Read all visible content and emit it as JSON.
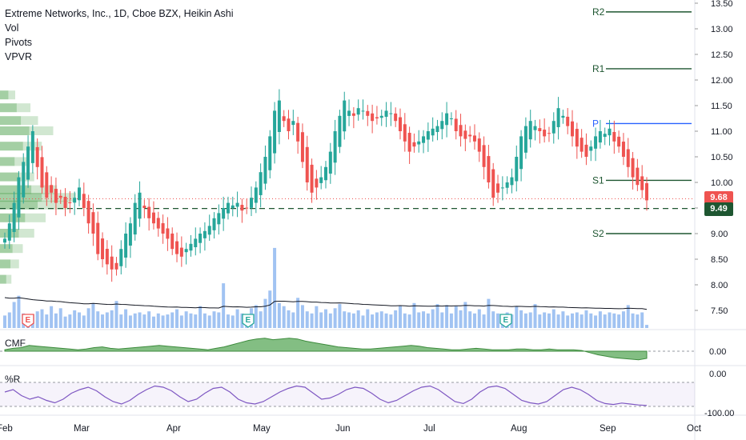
{
  "legend": {
    "title": "Extreme Networks, Inc., 1D, Cboe BZX, Heikin Ashi",
    "lines": [
      "Vol",
      "Pivots",
      "VPVR"
    ]
  },
  "panes": {
    "cmf_label": "CMF",
    "wr_label": "%R"
  },
  "colors": {
    "up": "#26a69a",
    "down": "#ef5350",
    "pivot": "#1e5631",
    "pivot_p": "#2962ff",
    "volume": "#90b8f0",
    "cmf": "#5aa85a",
    "wr": "#7e57c2"
  },
  "chart_data": [
    {
      "type": "candlestick",
      "title": "",
      "y_axis_ticks": [
        "13.50",
        "13.00",
        "12.50",
        "12.00",
        "11.50",
        "11.00",
        "10.50",
        "10.00",
        "9.50",
        "9.00",
        "8.50",
        "8.00",
        "7.50"
      ],
      "ylim": [
        7.25,
        13.55
      ],
      "x_axis_labels": [
        "Feb",
        "Mar",
        "Apr",
        "May",
        "Jun",
        "Jul",
        "Aug",
        "Sep",
        "Oct"
      ],
      "current_price": {
        "label": "9.68",
        "value": 9.68
      },
      "reference_price": {
        "label": "9.49",
        "value": 9.49
      },
      "pivots": [
        {
          "name": "R2",
          "value": 13.33
        },
        {
          "name": "R1",
          "value": 12.22
        },
        {
          "name": "P",
          "value": 11.15
        },
        {
          "name": "S1",
          "value": 10.04
        },
        {
          "name": "S2",
          "value": 9.0
        }
      ],
      "earnings_markers": [
        "E",
        "E",
        "E"
      ],
      "closes": [
        8.9,
        9.2,
        9.6,
        10.1,
        10.4,
        10.7,
        11.0,
        10.3,
        9.9,
        9.7,
        9.8,
        9.6,
        9.7,
        9.5,
        9.6,
        9.7,
        9.9,
        9.5,
        9.2,
        9.0,
        8.6,
        8.5,
        8.4,
        8.3,
        8.3,
        8.7,
        9.0,
        9.2,
        9.6,
        9.8,
        9.5,
        9.3,
        9.2,
        9.1,
        9.0,
        8.9,
        8.7,
        8.6,
        8.55,
        8.7,
        8.8,
        8.9,
        9.0,
        9.05,
        9.15,
        9.3,
        9.4,
        9.5,
        9.6,
        9.55,
        9.6,
        9.45,
        9.5,
        9.7,
        9.9,
        10.2,
        10.5,
        10.9,
        11.4,
        11.6,
        11.2,
        11.0,
        11.2,
        10.8,
        10.4,
        10.0,
        9.8,
        9.9,
        10.1,
        10.3,
        10.6,
        11.0,
        11.3,
        11.6,
        11.4,
        11.3,
        11.45,
        11.4,
        11.3,
        11.2,
        11.25,
        11.3,
        11.4,
        11.35,
        11.2,
        11.0,
        10.8,
        10.6,
        10.7,
        10.8,
        10.9,
        11.0,
        11.05,
        11.1,
        11.2,
        11.35,
        11.25,
        11.0,
        10.9,
        10.85,
        10.9,
        10.8,
        10.6,
        10.3,
        10.0,
        9.7,
        9.8,
        9.9,
        10.0,
        10.1,
        10.5,
        10.9,
        11.1,
        11.2,
        11.1,
        11.0,
        10.9,
        10.95,
        11.2,
        11.45,
        11.3,
        11.1,
        10.9,
        10.7,
        10.6,
        10.5,
        10.7,
        10.9,
        11.0,
        10.95,
        11.05,
        10.8,
        10.7,
        10.5,
        10.3,
        10.1,
        9.95,
        9.85,
        9.65
      ],
      "volume": [
        1.2,
        1.5,
        2.5,
        3.1,
        1.4,
        1.2,
        1.3,
        1.6,
        1.8,
        1.3,
        2.1,
        1.4,
        1.9,
        1.1,
        1.3,
        1.7,
        1.5,
        1.2,
        1.9,
        2.4,
        1.6,
        1.3,
        1.5,
        1.7,
        2.6,
        1.3,
        1.8,
        1.2,
        1.4,
        1.5,
        1.3,
        1.6,
        1.1,
        1.4,
        1.2,
        1.3,
        1.5,
        1.8,
        1.2,
        1.6,
        1.4,
        1.3,
        2.1,
        1.4,
        1.2,
        1.6,
        1.5,
        4.3,
        1.3,
        1.2,
        1.8,
        1.4,
        1.3,
        1.9,
        2.2,
        1.6,
        2.8,
        3.6,
        7.7,
        2.4,
        2.1,
        1.7,
        1.5,
        2.9,
        2.2,
        1.6,
        1.4,
        2.1,
        1.5,
        1.8,
        1.4,
        1.9,
        2.3,
        1.6,
        1.5,
        1.4,
        1.7,
        1.2,
        1.8,
        1.3,
        1.5,
        1.6,
        1.4,
        1.3,
        1.7,
        2.1,
        1.4,
        1.3,
        2.4,
        1.5,
        1.6,
        1.4,
        1.8,
        2.3,
        1.5,
        2.2,
        1.4,
        2.1,
        1.7,
        2.5,
        1.6,
        1.4,
        1.8,
        1.3,
        2.8,
        1.6,
        1.4,
        1.2,
        1.5,
        1.3,
        2.1,
        1.7,
        1.4,
        1.5,
        2.3,
        1.3,
        1.5,
        1.4,
        1.8,
        1.3,
        1.6,
        1.2,
        1.4,
        1.5,
        1.3,
        1.7,
        1.4,
        1.2,
        1.6,
        1.3,
        1.5,
        1.4,
        1.3,
        1.6,
        2.2,
        1.4,
        1.3,
        1.5,
        0.3
      ],
      "volume_ma_start": 2.5,
      "vpvr_levels": [
        {
          "price": 9.55,
          "width": 0.9
        },
        {
          "price": 9.7,
          "width": 1.0
        },
        {
          "price": 9.85,
          "width": 0.75
        },
        {
          "price": 10.1,
          "width": 0.45
        },
        {
          "price": 10.4,
          "width": 0.35
        },
        {
          "price": 10.7,
          "width": 0.55
        },
        {
          "price": 11.0,
          "width": 0.7
        },
        {
          "price": 11.2,
          "width": 0.5
        },
        {
          "price": 11.45,
          "width": 0.4
        },
        {
          "price": 11.7,
          "width": 0.2
        },
        {
          "price": 9.3,
          "width": 0.6
        },
        {
          "price": 9.0,
          "width": 0.45
        },
        {
          "price": 8.7,
          "width": 0.3
        },
        {
          "price": 8.4,
          "width": 0.25
        },
        {
          "price": 8.1,
          "width": 0.15
        }
      ]
    },
    {
      "type": "area",
      "name": "CMF",
      "y_axis_ticks": [
        "0.00"
      ],
      "ylim": [
        -0.35,
        0.35
      ],
      "values": [
        0.02,
        0.04,
        0.05,
        0.08,
        0.07,
        0.06,
        0.05,
        0.04,
        0.03,
        0.02,
        0.03,
        0.05,
        0.06,
        0.04,
        0.03,
        0.04,
        0.05,
        0.06,
        0.07,
        0.08,
        0.07,
        0.06,
        0.05,
        0.04,
        0.03,
        0.02,
        0.04,
        0.06,
        0.09,
        0.12,
        0.15,
        0.17,
        0.18,
        0.16,
        0.17,
        0.18,
        0.17,
        0.14,
        0.12,
        0.1,
        0.08,
        0.06,
        0.05,
        0.04,
        0.03,
        0.03,
        0.04,
        0.05,
        0.06,
        0.07,
        0.08,
        0.07,
        0.05,
        0.04,
        0.03,
        0.02,
        0.02,
        0.03,
        0.04,
        0.03,
        0.02,
        0.02,
        0.02,
        0.03,
        0.03,
        0.02,
        0.02,
        0.03,
        0.02,
        0.02,
        0.02,
        0.01,
        -0.02,
        -0.05,
        -0.07,
        -0.09,
        -0.1,
        -0.11,
        -0.12,
        -0.1
      ]
    },
    {
      "type": "line",
      "name": "%R",
      "y_axis_ticks": [
        "0.00",
        "-100.00"
      ],
      "ylim": [
        -100,
        0
      ],
      "values": [
        -40,
        -30,
        -55,
        -70,
        -60,
        -75,
        -85,
        -70,
        -45,
        -30,
        -20,
        -35,
        -60,
        -80,
        -90,
        -75,
        -50,
        -30,
        -15,
        -20,
        -35,
        -60,
        -80,
        -70,
        -45,
        -25,
        -20,
        -40,
        -70,
        -85,
        -90,
        -80,
        -60,
        -40,
        -25,
        -15,
        -20,
        -45,
        -70,
        -65,
        -50,
        -30,
        -20,
        -25,
        -45,
        -70,
        -85,
        -75,
        -55,
        -35,
        -20,
        -15,
        -30,
        -55,
        -80,
        -88,
        -70,
        -40,
        -20,
        -15,
        -25,
        -50,
        -75,
        -85,
        -90,
        -80,
        -55,
        -30,
        -20,
        -30,
        -50,
        -75,
        -88,
        -92,
        -86,
        -90,
        -94,
        -96
      ]
    }
  ]
}
